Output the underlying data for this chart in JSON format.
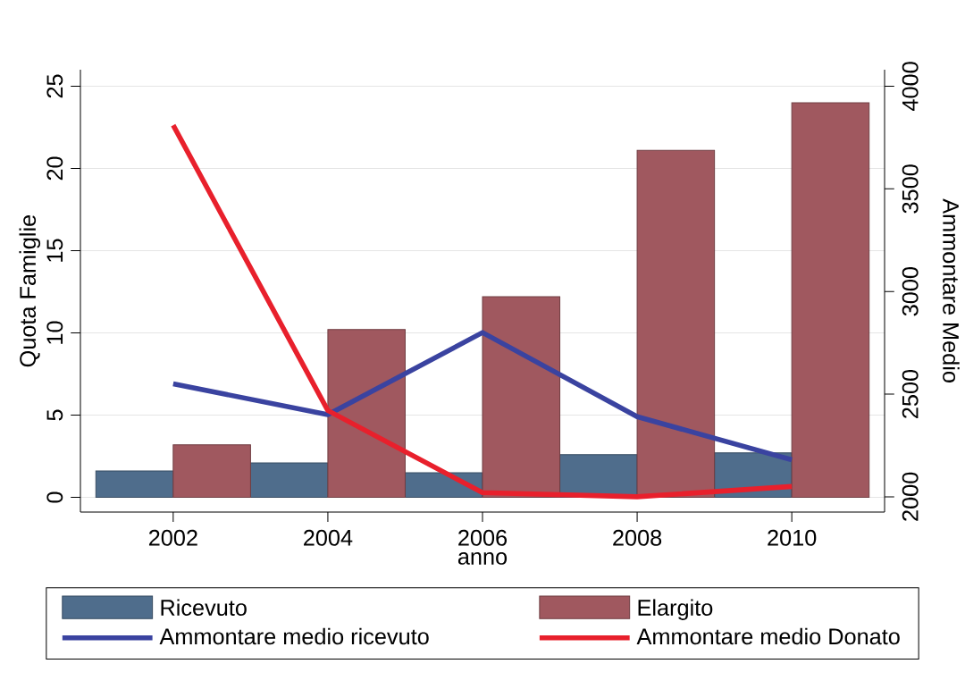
{
  "chart_data": {
    "type": "bar",
    "xlabel": "anno",
    "ylabel": "Quota Famiglie",
    "y2label": "Ammontare Medio",
    "x": [
      2002,
      2004,
      2006,
      2008,
      2010
    ],
    "series": [
      {
        "name": "Ricevuto",
        "color": "#4f6d8c",
        "values": [
          1.6,
          2.1,
          1.5,
          2.6,
          2.7
        ]
      },
      {
        "name": "Elargito",
        "color": "#a0585f",
        "values": [
          3.2,
          10.2,
          12.2,
          21.1,
          24.0
        ]
      },
      {
        "name": "Ammontare medio ricevuto",
        "type": "line",
        "axis": "y2",
        "color": "#3a43a0",
        "values": [
          2550,
          2400,
          2800,
          2390,
          2180
        ]
      },
      {
        "name": "Ammontare medio Donato",
        "type": "line",
        "axis": "y2",
        "color": "#e8202c",
        "values": [
          3810,
          2420,
          2020,
          2000,
          2050
        ]
      }
    ],
    "xlim": [
      2000.8,
      2011.2
    ],
    "xticks": [
      2002,
      2004,
      2006,
      2008,
      2010
    ],
    "ylim": [
      -0.9,
      26
    ],
    "yticks": [
      0,
      5,
      10,
      15,
      20,
      25
    ],
    "y2lim": [
      1925,
      4080
    ],
    "y2ticks": [
      2000,
      2500,
      3000,
      3500,
      4000
    ],
    "grid": "y",
    "legend": "bottom",
    "marker": "none",
    "line_style": "solid"
  }
}
